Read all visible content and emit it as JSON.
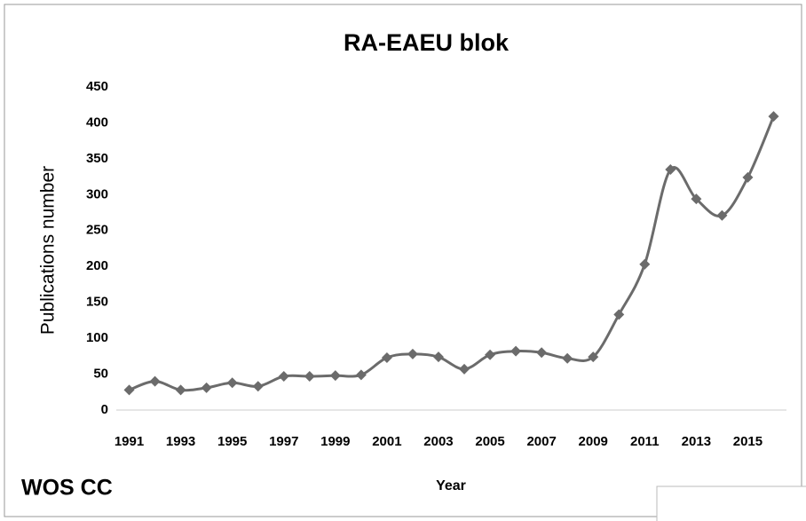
{
  "chart_data": {
    "type": "line",
    "title": "RA-EAEU blok",
    "x_label": "Year",
    "y_label": "Publications number",
    "annotation": "WOS CC",
    "categories": [
      "1991",
      null,
      "1993",
      null,
      "1995",
      null,
      "1997",
      null,
      "1999",
      null,
      "2001",
      null,
      "2003",
      null,
      "2005",
      null,
      "2007",
      null,
      "2009",
      null,
      "2011",
      null,
      "2013",
      null,
      "2015",
      null
    ],
    "series": [
      {
        "name": "Publications",
        "color": "#6b6b6b",
        "values": [
          28,
          40,
          28,
          31,
          38,
          33,
          47,
          47,
          48,
          49,
          73,
          78,
          74,
          57,
          77,
          82,
          80,
          72,
          74,
          133,
          203,
          335,
          294,
          271,
          324,
          409
        ]
      }
    ],
    "ylim": [
      0,
      450
    ],
    "yticks": [
      0,
      50,
      100,
      150,
      200,
      250,
      300,
      350,
      400,
      450
    ],
    "grid": false,
    "smooth": true,
    "marker": "diamond"
  }
}
